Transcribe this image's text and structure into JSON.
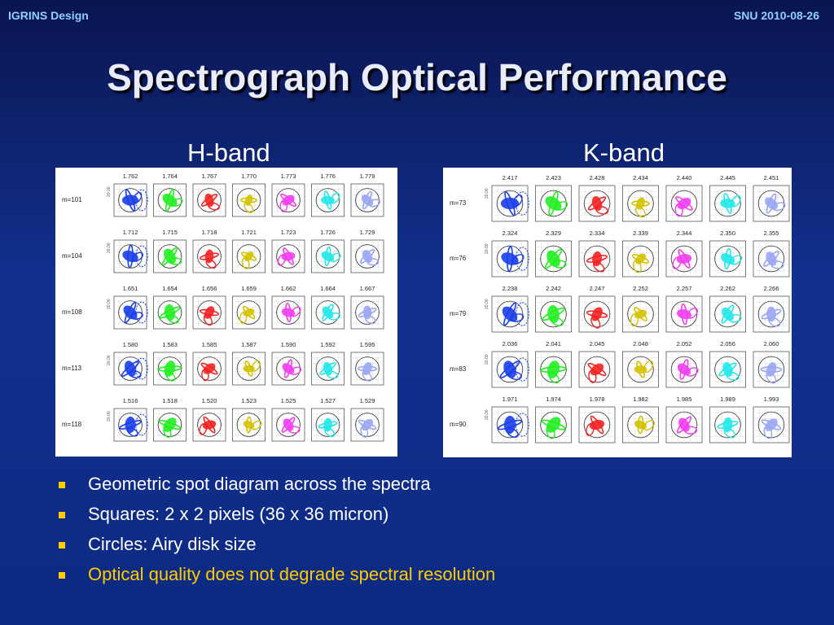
{
  "header": {
    "left": "IGRINS Design",
    "right": "SNU 2010-08-26"
  },
  "title": "Spectrograph Optical Performance",
  "colors": {
    "columns": [
      "#1a3ee8",
      "#22ee22",
      "#f22222",
      "#d4c200",
      "#f23df0",
      "#22e8e8",
      "#9aa6f2"
    ],
    "bullet": "#ffcc00",
    "highlight": "#ffcc00"
  },
  "panels": {
    "h_band": {
      "label": "H-band",
      "tile_axis_label": "20.00",
      "rows": [
        {
          "order": "m=101",
          "wavelengths": [
            "1.762",
            "1.764",
            "1.767",
            "1.770",
            "1.773",
            "1.776",
            "1.779"
          ]
        },
        {
          "order": "m=104",
          "wavelengths": [
            "1.712",
            "1.715",
            "1.718",
            "1.721",
            "1.723",
            "1.726",
            "1.729"
          ]
        },
        {
          "order": "m=108",
          "wavelengths": [
            "1.651",
            "1.654",
            "1.656",
            "1.659",
            "1.662",
            "1.664",
            "1.667"
          ]
        },
        {
          "order": "m=113",
          "wavelengths": [
            "1.580",
            "1.583",
            "1.585",
            "1.587",
            "1.590",
            "1.592",
            "1.595"
          ]
        },
        {
          "order": "m=118",
          "wavelengths": [
            "1.516",
            "1.518",
            "1.520",
            "1.523",
            "1.525",
            "1.527",
            "1.529"
          ]
        }
      ]
    },
    "k_band": {
      "label": "K-band",
      "tile_axis_label": "20.00",
      "rows": [
        {
          "order": "m=73",
          "wavelengths": [
            "2.417",
            "2.423",
            "2.428",
            "2.434",
            "2.440",
            "2.445",
            "2.451"
          ]
        },
        {
          "order": "m=76",
          "wavelengths": [
            "2.324",
            "2.329",
            "2.334",
            "2.339",
            "2.344",
            "2.350",
            "2.355"
          ]
        },
        {
          "order": "m=79",
          "wavelengths": [
            "2.238",
            "2.242",
            "2.247",
            "2.252",
            "2.257",
            "2.262",
            "2.266"
          ]
        },
        {
          "order": "m=83",
          "wavelengths": [
            "2.036",
            "2.041",
            "2.045",
            "2.048",
            "2.052",
            "2.056",
            "2.060"
          ]
        },
        {
          "order": "m=90",
          "wavelengths": [
            "1.971",
            "1.974",
            "1.978",
            "1.982",
            "1.985",
            "1.989",
            "1.993"
          ]
        }
      ]
    }
  },
  "bullets": [
    {
      "text": "Geometric spot diagram across the spectra",
      "highlight": false
    },
    {
      "text": "Squares: 2 x 2 pixels (36 x 36 micron)",
      "highlight": false
    },
    {
      "text": "Circles: Airy disk size",
      "highlight": false
    },
    {
      "text": "Optical quality does not degrade spectral resolution",
      "highlight": true
    }
  ]
}
